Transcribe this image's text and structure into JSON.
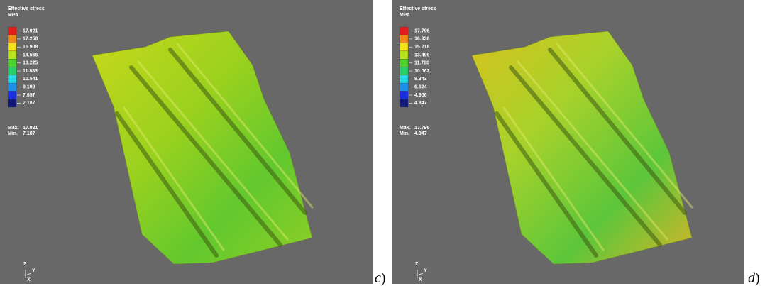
{
  "panels": [
    {
      "title": "Effective stress",
      "unit": "MPa",
      "levels": [
        "17.921",
        "17.258",
        "15.908",
        "14.566",
        "13.225",
        "11.883",
        "10.541",
        "9.199",
        "7.857",
        "7.187"
      ],
      "max_label": "Max.",
      "max": "17.921",
      "min_label": "Min.",
      "min": "7.187",
      "axes": {
        "z": "Z",
        "y": "Y",
        "x": "X"
      },
      "caption": {
        "letter": "c",
        "paren": ")"
      }
    },
    {
      "title": "Effective stress",
      "unit": "MPa",
      "levels": [
        "17.796",
        "16.936",
        "15.218",
        "13.499",
        "11.780",
        "10.062",
        "8.343",
        "6.624",
        "4.906",
        "4.847"
      ],
      "max_label": "Max.",
      "max": "17.796",
      "min_label": "Min.",
      "min": "4.847",
      "axes": {
        "z": "Z",
        "y": "Y",
        "x": "X"
      },
      "caption": {
        "letter": "d",
        "paren": ")"
      }
    }
  ]
}
